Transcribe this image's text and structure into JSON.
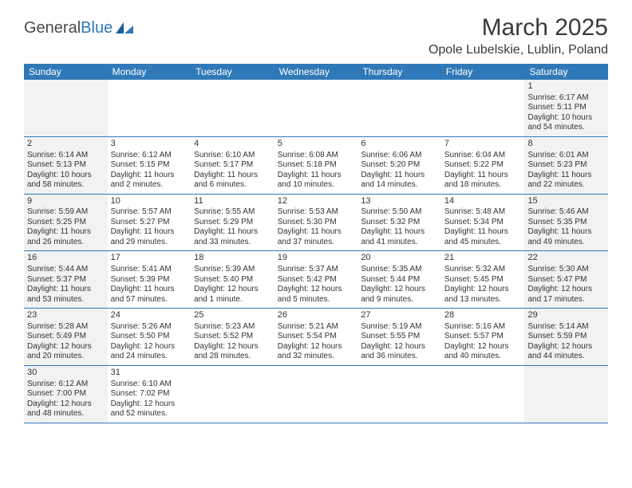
{
  "brand": {
    "part1": "General",
    "part2": "Blue"
  },
  "title": "March 2025",
  "location": "Opole Lubelskie, Lublin, Poland",
  "colors": {
    "header_bg": "#3079b8",
    "header_text": "#ffffff",
    "weekend_bg": "#f2f2f2",
    "border": "#3079b8",
    "text": "#333333"
  },
  "day_names": [
    "Sunday",
    "Monday",
    "Tuesday",
    "Wednesday",
    "Thursday",
    "Friday",
    "Saturday"
  ],
  "weeks": [
    [
      {
        "weekend": true
      },
      {},
      {},
      {},
      {},
      {},
      {
        "weekend": true,
        "num": "1",
        "sunrise": "Sunrise: 6:17 AM",
        "sunset": "Sunset: 5:11 PM",
        "daylight1": "Daylight: 10 hours",
        "daylight2": "and 54 minutes."
      }
    ],
    [
      {
        "weekend": true,
        "num": "2",
        "sunrise": "Sunrise: 6:14 AM",
        "sunset": "Sunset: 5:13 PM",
        "daylight1": "Daylight: 10 hours",
        "daylight2": "and 58 minutes."
      },
      {
        "num": "3",
        "sunrise": "Sunrise: 6:12 AM",
        "sunset": "Sunset: 5:15 PM",
        "daylight1": "Daylight: 11 hours",
        "daylight2": "and 2 minutes."
      },
      {
        "num": "4",
        "sunrise": "Sunrise: 6:10 AM",
        "sunset": "Sunset: 5:17 PM",
        "daylight1": "Daylight: 11 hours",
        "daylight2": "and 6 minutes."
      },
      {
        "num": "5",
        "sunrise": "Sunrise: 6:08 AM",
        "sunset": "Sunset: 5:18 PM",
        "daylight1": "Daylight: 11 hours",
        "daylight2": "and 10 minutes."
      },
      {
        "num": "6",
        "sunrise": "Sunrise: 6:06 AM",
        "sunset": "Sunset: 5:20 PM",
        "daylight1": "Daylight: 11 hours",
        "daylight2": "and 14 minutes."
      },
      {
        "num": "7",
        "sunrise": "Sunrise: 6:04 AM",
        "sunset": "Sunset: 5:22 PM",
        "daylight1": "Daylight: 11 hours",
        "daylight2": "and 18 minutes."
      },
      {
        "weekend": true,
        "num": "8",
        "sunrise": "Sunrise: 6:01 AM",
        "sunset": "Sunset: 5:23 PM",
        "daylight1": "Daylight: 11 hours",
        "daylight2": "and 22 minutes."
      }
    ],
    [
      {
        "weekend": true,
        "num": "9",
        "sunrise": "Sunrise: 5:59 AM",
        "sunset": "Sunset: 5:25 PM",
        "daylight1": "Daylight: 11 hours",
        "daylight2": "and 26 minutes."
      },
      {
        "num": "10",
        "sunrise": "Sunrise: 5:57 AM",
        "sunset": "Sunset: 5:27 PM",
        "daylight1": "Daylight: 11 hours",
        "daylight2": "and 29 minutes."
      },
      {
        "num": "11",
        "sunrise": "Sunrise: 5:55 AM",
        "sunset": "Sunset: 5:29 PM",
        "daylight1": "Daylight: 11 hours",
        "daylight2": "and 33 minutes."
      },
      {
        "num": "12",
        "sunrise": "Sunrise: 5:53 AM",
        "sunset": "Sunset: 5:30 PM",
        "daylight1": "Daylight: 11 hours",
        "daylight2": "and 37 minutes."
      },
      {
        "num": "13",
        "sunrise": "Sunrise: 5:50 AM",
        "sunset": "Sunset: 5:32 PM",
        "daylight1": "Daylight: 11 hours",
        "daylight2": "and 41 minutes."
      },
      {
        "num": "14",
        "sunrise": "Sunrise: 5:48 AM",
        "sunset": "Sunset: 5:34 PM",
        "daylight1": "Daylight: 11 hours",
        "daylight2": "and 45 minutes."
      },
      {
        "weekend": true,
        "num": "15",
        "sunrise": "Sunrise: 5:46 AM",
        "sunset": "Sunset: 5:35 PM",
        "daylight1": "Daylight: 11 hours",
        "daylight2": "and 49 minutes."
      }
    ],
    [
      {
        "weekend": true,
        "num": "16",
        "sunrise": "Sunrise: 5:44 AM",
        "sunset": "Sunset: 5:37 PM",
        "daylight1": "Daylight: 11 hours",
        "daylight2": "and 53 minutes."
      },
      {
        "num": "17",
        "sunrise": "Sunrise: 5:41 AM",
        "sunset": "Sunset: 5:39 PM",
        "daylight1": "Daylight: 11 hours",
        "daylight2": "and 57 minutes."
      },
      {
        "num": "18",
        "sunrise": "Sunrise: 5:39 AM",
        "sunset": "Sunset: 5:40 PM",
        "daylight1": "Daylight: 12 hours",
        "daylight2": "and 1 minute."
      },
      {
        "num": "19",
        "sunrise": "Sunrise: 5:37 AM",
        "sunset": "Sunset: 5:42 PM",
        "daylight1": "Daylight: 12 hours",
        "daylight2": "and 5 minutes."
      },
      {
        "num": "20",
        "sunrise": "Sunrise: 5:35 AM",
        "sunset": "Sunset: 5:44 PM",
        "daylight1": "Daylight: 12 hours",
        "daylight2": "and 9 minutes."
      },
      {
        "num": "21",
        "sunrise": "Sunrise: 5:32 AM",
        "sunset": "Sunset: 5:45 PM",
        "daylight1": "Daylight: 12 hours",
        "daylight2": "and 13 minutes."
      },
      {
        "weekend": true,
        "num": "22",
        "sunrise": "Sunrise: 5:30 AM",
        "sunset": "Sunset: 5:47 PM",
        "daylight1": "Daylight: 12 hours",
        "daylight2": "and 17 minutes."
      }
    ],
    [
      {
        "weekend": true,
        "num": "23",
        "sunrise": "Sunrise: 5:28 AM",
        "sunset": "Sunset: 5:49 PM",
        "daylight1": "Daylight: 12 hours",
        "daylight2": "and 20 minutes."
      },
      {
        "num": "24",
        "sunrise": "Sunrise: 5:26 AM",
        "sunset": "Sunset: 5:50 PM",
        "daylight1": "Daylight: 12 hours",
        "daylight2": "and 24 minutes."
      },
      {
        "num": "25",
        "sunrise": "Sunrise: 5:23 AM",
        "sunset": "Sunset: 5:52 PM",
        "daylight1": "Daylight: 12 hours",
        "daylight2": "and 28 minutes."
      },
      {
        "num": "26",
        "sunrise": "Sunrise: 5:21 AM",
        "sunset": "Sunset: 5:54 PM",
        "daylight1": "Daylight: 12 hours",
        "daylight2": "and 32 minutes."
      },
      {
        "num": "27",
        "sunrise": "Sunrise: 5:19 AM",
        "sunset": "Sunset: 5:55 PM",
        "daylight1": "Daylight: 12 hours",
        "daylight2": "and 36 minutes."
      },
      {
        "num": "28",
        "sunrise": "Sunrise: 5:16 AM",
        "sunset": "Sunset: 5:57 PM",
        "daylight1": "Daylight: 12 hours",
        "daylight2": "and 40 minutes."
      },
      {
        "weekend": true,
        "num": "29",
        "sunrise": "Sunrise: 5:14 AM",
        "sunset": "Sunset: 5:59 PM",
        "daylight1": "Daylight: 12 hours",
        "daylight2": "and 44 minutes."
      }
    ],
    [
      {
        "weekend": true,
        "num": "30",
        "sunrise": "Sunrise: 6:12 AM",
        "sunset": "Sunset: 7:00 PM",
        "daylight1": "Daylight: 12 hours",
        "daylight2": "and 48 minutes."
      },
      {
        "num": "31",
        "sunrise": "Sunrise: 6:10 AM",
        "sunset": "Sunset: 7:02 PM",
        "daylight1": "Daylight: 12 hours",
        "daylight2": "and 52 minutes."
      },
      {},
      {},
      {},
      {},
      {
        "weekend": true
      }
    ]
  ]
}
